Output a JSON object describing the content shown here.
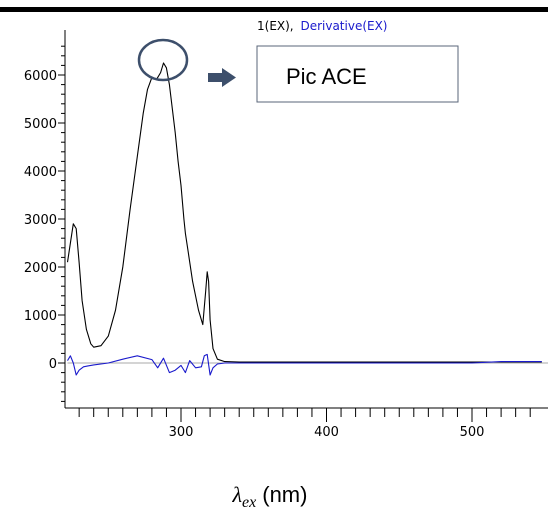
{
  "chart_data": {
    "type": "line",
    "legend": {
      "series1": "1(EX),",
      "series2": "Derivative(EX)"
    },
    "xlabel": {
      "symbol": "λ",
      "subscript": "ex",
      "unit": "(nm)"
    },
    "xlim": [
      222,
      548
    ],
    "ylim": [
      -900,
      6800
    ],
    "x_ticks": [
      300,
      400,
      500
    ],
    "y_ticks": [
      0,
      1000,
      2000,
      3000,
      4000,
      5000,
      6000
    ],
    "grid": false,
    "colors": {
      "series1": "#000000",
      "series2": "#1a1acc",
      "annotation": "#3d4f6b",
      "zero_line": "#aaaaaa"
    },
    "series": [
      {
        "name": "1(EX)",
        "x": [
          222,
          224,
          226,
          228,
          230,
          232,
          235,
          238,
          240,
          245,
          250,
          255,
          260,
          265,
          270,
          274,
          277,
          280,
          283,
          286,
          288,
          290,
          292,
          294,
          296,
          298,
          300,
          302,
          303,
          305,
          308,
          312,
          315,
          317,
          318,
          319,
          320,
          322,
          325,
          330,
          340,
          400,
          450,
          500,
          548
        ],
        "y": [
          2100,
          2500,
          2900,
          2800,
          2100,
          1300,
          700,
          400,
          330,
          360,
          560,
          1100,
          2000,
          3200,
          4300,
          5200,
          5700,
          5950,
          5900,
          6050,
          6250,
          6150,
          5800,
          5300,
          4800,
          4200,
          3700,
          3000,
          2700,
          2300,
          1700,
          1100,
          800,
          1500,
          1900,
          1700,
          900,
          300,
          80,
          30,
          20,
          20,
          20,
          20,
          20
        ]
      },
      {
        "name": "Derivative(EX)",
        "x": [
          222,
          224,
          226,
          228,
          230,
          233,
          236,
          240,
          250,
          260,
          270,
          280,
          284,
          288,
          292,
          296,
          300,
          303,
          306,
          310,
          314,
          316,
          318,
          320,
          322,
          325,
          330,
          400,
          500,
          520,
          548
        ],
        "y": [
          50,
          150,
          0,
          -250,
          -150,
          -80,
          -60,
          -40,
          0,
          80,
          150,
          70,
          -100,
          100,
          -200,
          -150,
          -50,
          -200,
          50,
          -100,
          -80,
          150,
          180,
          -250,
          -100,
          -20,
          0,
          0,
          0,
          30,
          30
        ]
      }
    ],
    "annotation": {
      "label": "Pic ACE"
    }
  }
}
